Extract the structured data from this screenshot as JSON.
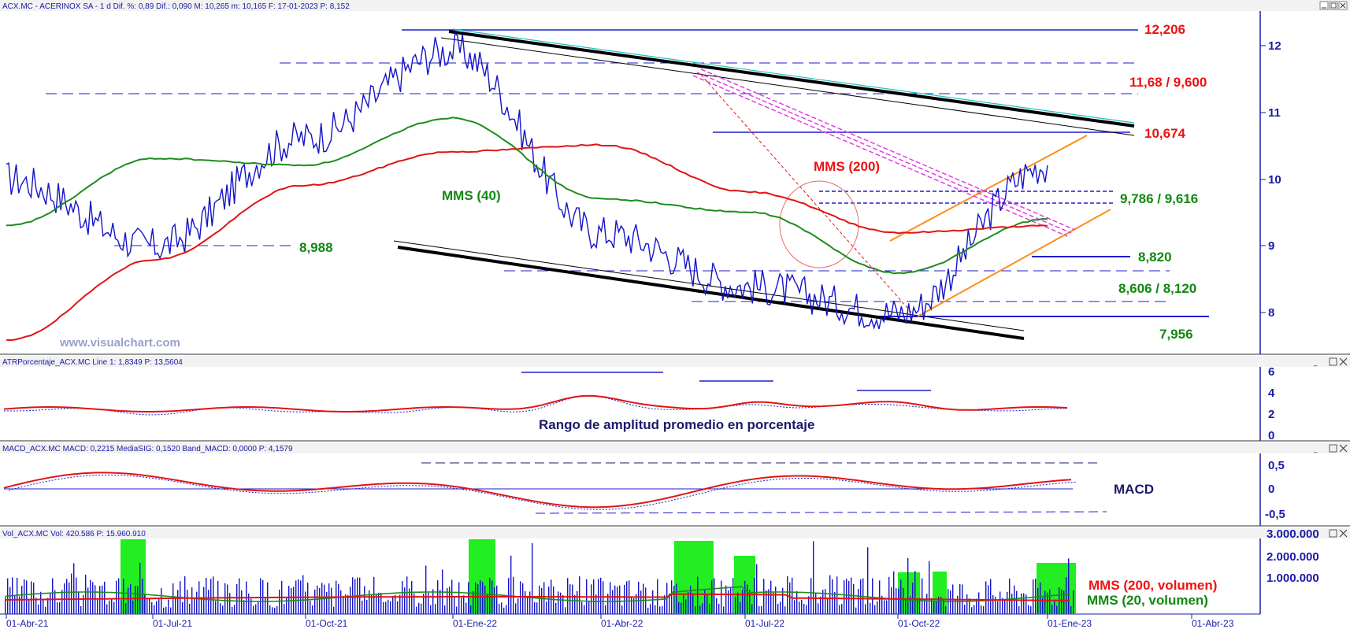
{
  "colors": {
    "price": "#1414c8",
    "mms40": "#1e8c1e",
    "mms200": "#e11414",
    "resistance": "#1e1ecc",
    "channel": "#000000",
    "orange": "#ff8c1a",
    "magenta": "#e040e0",
    "volhi": "#22ee22",
    "label_red": "#ee1111",
    "label_green": "#118811",
    "axis": "#1a1aa8"
  },
  "panels": {
    "price": {
      "header": "ACX.MC - ACERINOX SA -  1 d  Dif. %: 0,89  Dif.: 0,090  M: 10,265  m: 10,165  F: 17-01-2023  P: 8,152",
      "y_ticks": [
        "12",
        "11",
        "10",
        "9",
        "8"
      ],
      "annotations": {
        "mms200": "MMS (200)",
        "mms40": "MMS (40)",
        "lvl_12206": "12,206",
        "lvl_1168": "11,68 / 9,600",
        "lvl_10674": "10,674",
        "lvl_9786": "9,786 / 9,616",
        "lvl_8820": "8,820",
        "lvl_8606": "8,606 / 8,120",
        "lvl_7956": "7,956",
        "lvl_8988": "8,988"
      },
      "watermark": "www.visualchart.com"
    },
    "atr": {
      "header": "ATRPorcentaje_ACX.MC  Line 1: 1,8349  P: 13,5604",
      "y_ticks": [
        "6",
        "4",
        "2",
        "0"
      ],
      "caption": "Rango de amplitud promedio en porcentaje"
    },
    "macd": {
      "header": "MACD_ACX.MC  MACD: 0,2215  MediaSIG: 0,1520  Band_MACD: 0,0000  P: 4,1579",
      "y_ticks": [
        "0,5",
        "0",
        "-0,5"
      ],
      "caption": "MACD"
    },
    "volume": {
      "header": "Vol_ACX.MC  Vol: 420.586  P: 15.960.910",
      "y_ticks": [
        "3.000.000",
        "2.000.000",
        "1.000.000"
      ],
      "caption_red": "MMS (200, volumen)",
      "caption_green": "MMS (20, volumen)"
    }
  },
  "x_axis": [
    "01-Abr-21",
    "01-Jul-21",
    "01-Oct-21",
    "01-Ene-22",
    "01-Abr-22",
    "01-Jul-22",
    "01-Oct-22",
    "01-Ene-23",
    "01-Abr-23"
  ],
  "chart_data": {
    "type": "line",
    "title": "ACX.MC - ACERINOX SA - 1 d",
    "xlabel": "",
    "ylabel": "",
    "x": [
      "01-Abr-21",
      "01-Jul-21",
      "01-Oct-21",
      "01-Ene-22",
      "01-Abr-22",
      "01-Jul-22",
      "01-Oct-22",
      "01-Ene-23"
    ],
    "ylim": [
      7.4,
      12.5
    ],
    "series": [
      {
        "name": "",
        "values": [
          10.0,
          9.0,
          10.6,
          11.9,
          9.2,
          8.4,
          8.0,
          10.2
        ]
      },
      {
        "name": "MMS (40)",
        "values": [
          9.3,
          10.3,
          10.2,
          10.9,
          9.7,
          9.5,
          8.6,
          9.4
        ]
      },
      {
        "name": "MMS (200)",
        "values": [
          7.6,
          8.8,
          9.9,
          10.4,
          10.5,
          9.8,
          9.2,
          9.3
        ]
      }
    ],
    "levels": [
      12.206,
      11.68,
      10.674,
      9.786,
      9.616,
      8.988,
      8.82,
      8.606,
      8.12,
      7.956
    ]
  }
}
